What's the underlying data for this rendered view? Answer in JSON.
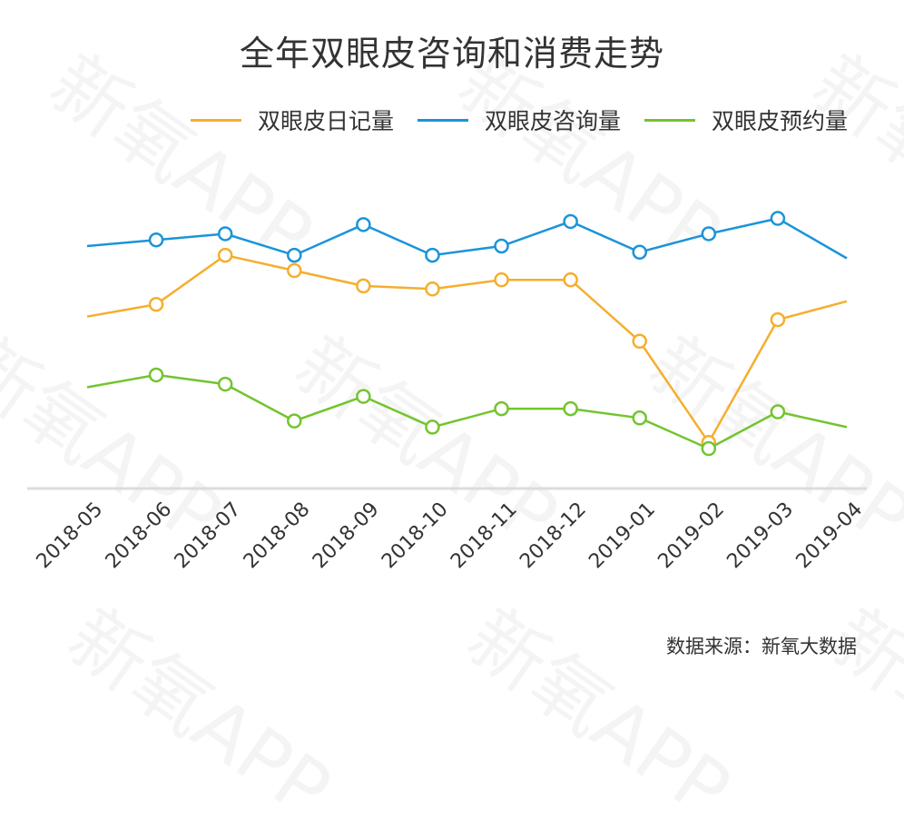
{
  "title": "全年双眼皮咨询和消费走势",
  "source": "数据来源：新氧大数据",
  "watermark_text": "新氧APP",
  "legend": [
    {
      "label": "双眼皮日记量",
      "color": "#f5ae2e"
    },
    {
      "label": "双眼皮咨询量",
      "color": "#1a94d9"
    },
    {
      "label": "双眼皮预约量",
      "color": "#73c42f"
    }
  ],
  "chart_data": {
    "type": "line",
    "title": "全年双眼皮咨询和消费走势",
    "xlabel": "",
    "ylabel": "",
    "ylim": [
      0,
      100
    ],
    "y_axis_visible": false,
    "grid": false,
    "legend_position": "top",
    "note": "No y-axis scale shown; values are relative estimates on a 0-100 scale from pixel positions.",
    "categories": [
      "2018-05",
      "2018-06",
      "2018-07",
      "2018-08",
      "2018-09",
      "2018-10",
      "2018-11",
      "2018-12",
      "2019-01",
      "2019-02",
      "2019-03",
      "2019-04"
    ],
    "series": [
      {
        "name": "双眼皮日记量",
        "color": "#f5ae2e",
        "values": [
          56,
          60,
          76,
          71,
          66,
          65,
          68,
          68,
          48,
          15,
          55,
          61
        ]
      },
      {
        "name": "双眼皮咨询量",
        "color": "#1a94d9",
        "values": [
          79,
          81,
          83,
          76,
          86,
          76,
          79,
          87,
          77,
          83,
          88,
          75
        ]
      },
      {
        "name": "双眼皮预约量",
        "color": "#73c42f",
        "values": [
          33,
          37,
          34,
          22,
          30,
          20,
          26,
          26,
          23,
          13,
          25,
          20
        ]
      }
    ]
  }
}
